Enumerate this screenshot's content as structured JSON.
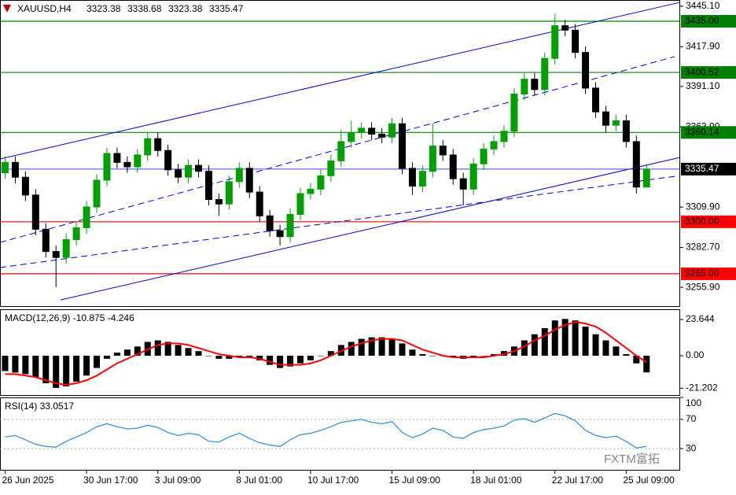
{
  "chart_data": [
    {
      "type": "candlestick",
      "symbol": "XAUUSD,H4",
      "categories": [
        "26 Jun 2025",
        null,
        null,
        null,
        null,
        null,
        null,
        null,
        "30 Jun 17:00",
        null,
        null,
        null,
        null,
        null,
        null,
        "3 Jul 09:00",
        null,
        null,
        null,
        null,
        null,
        null,
        null,
        "8 Jul 01:00",
        null,
        null,
        null,
        null,
        null,
        null,
        "10 Jul 17:00",
        null,
        null,
        null,
        null,
        null,
        null,
        null,
        "15 Jul 09:00",
        null,
        null,
        null,
        null,
        null,
        null,
        null,
        "18 Jul 01:00",
        null,
        null,
        null,
        null,
        null,
        null,
        null,
        "22 Jul 17:00",
        null,
        null,
        null,
        null,
        null,
        null,
        "25 Jul 09:00",
        null,
        null
      ],
      "open": [
        3333,
        3340,
        3330,
        3318,
        3295,
        3280,
        3276,
        3288,
        3296,
        3310,
        3328,
        3346,
        3340,
        3337,
        3345,
        3356,
        3348,
        3335,
        3330,
        3338,
        3334,
        3315,
        3312,
        3327,
        3336,
        3320,
        3304,
        3294,
        3290,
        3305,
        3319,
        3322,
        3331,
        3341,
        3354,
        3360,
        3363,
        3359,
        3357,
        3366,
        3336,
        3324,
        3334,
        3351,
        3345,
        3329,
        3322,
        3339,
        3349,
        3354,
        3361,
        3386,
        3396,
        3389,
        3410,
        3432,
        3429,
        3414,
        3390,
        3374,
        3365,
        3368,
        3354,
        3323.38
      ],
      "high": [
        3344,
        3344,
        3334,
        3322,
        3299,
        3284,
        3292,
        3300,
        3314,
        3332,
        3350,
        3350,
        3344,
        3349,
        3360,
        3360,
        3352,
        3339,
        3342,
        3342,
        3338,
        3319,
        3331,
        3340,
        3340,
        3324,
        3308,
        3298,
        3309,
        3323,
        3326,
        3335,
        3345,
        3362,
        3368,
        3367,
        3367,
        3363,
        3370,
        3370,
        3340,
        3338,
        3366,
        3355,
        3349,
        3333,
        3343,
        3353,
        3358,
        3365,
        3390,
        3400,
        3400,
        3414,
        3440,
        3436,
        3433,
        3418,
        3394,
        3378,
        3372,
        3372,
        3358,
        3338.68
      ],
      "low": [
        3329,
        3326,
        3314,
        3291,
        3276,
        3256,
        3272,
        3284,
        3292,
        3306,
        3324,
        3336,
        3333,
        3333,
        3341,
        3344,
        3331,
        3326,
        3326,
        3330,
        3311,
        3304,
        3308,
        3323,
        3316,
        3300,
        3290,
        3284,
        3286,
        3301,
        3315,
        3318,
        3327,
        3337,
        3350,
        3356,
        3355,
        3353,
        3353,
        3332,
        3318,
        3320,
        3330,
        3341,
        3325,
        3311,
        3318,
        3335,
        3345,
        3350,
        3357,
        3382,
        3385,
        3385,
        3406,
        3425,
        3410,
        3386,
        3370,
        3360,
        3361,
        3350,
        3319,
        3323.38
      ],
      "close": [
        3340,
        3330,
        3318,
        3295,
        3280,
        3276,
        3288,
        3296,
        3310,
        3328,
        3346,
        3340,
        3337,
        3345,
        3356,
        3348,
        3335,
        3330,
        3338,
        3334,
        3315,
        3312,
        3327,
        3336,
        3320,
        3304,
        3294,
        3290,
        3305,
        3319,
        3322,
        3331,
        3341,
        3354,
        3360,
        3363,
        3359,
        3357,
        3366,
        3336,
        3324,
        3334,
        3351,
        3345,
        3329,
        3322,
        3339,
        3349,
        3354,
        3361,
        3386,
        3396,
        3389,
        3410,
        3432,
        3429,
        3414,
        3390,
        3374,
        3365,
        3368,
        3354,
        3323.38,
        3335.47
      ],
      "up_color": "#00a000",
      "down_color": "#000000",
      "price_line_color": "#4040ff",
      "xlim": [
        -0.5,
        66.3
      ],
      "ylim": [
        3242.7,
        3449.3
      ],
      "yticks": [
        {
          "value": 3445.1,
          "label": "3445.10"
        },
        {
          "value": 3417.9,
          "label": "3417.90"
        },
        {
          "value": 3391.1,
          "label": "3391.10"
        },
        {
          "value": 3363.9,
          "label": "3363.90"
        },
        {
          "value": 3309.9,
          "label": "3309.90"
        },
        {
          "value": 3282.7,
          "label": "3282.70"
        },
        {
          "value": 3255.9,
          "label": "3255.90"
        }
      ],
      "levels": [
        {
          "value": 3435,
          "label": "3435.00",
          "color": "#008000"
        },
        {
          "value": 3400.52,
          "label": "3400.52",
          "color": "#008000"
        },
        {
          "value": 3360.14,
          "label": "3360.14",
          "color": "#008000"
        },
        {
          "value": 3300,
          "label": "3300.00",
          "color": "#ff0000"
        },
        {
          "value": 3265,
          "label": "3265.00",
          "color": "#ff0000"
        }
      ],
      "trendlines": [
        {
          "x": [
            -0.5,
            66.3
          ],
          "y": [
            3342.3,
            3447.75
          ],
          "color": "#0000cd",
          "dashed": false
        },
        {
          "x": [
            5.45,
            66.3
          ],
          "y": [
            3247.4,
            3343.35
          ],
          "color": "#0000cd",
          "dashed": false
        },
        {
          "x": [
            -0.5,
            65.76
          ],
          "y": [
            3286.1,
            3411.2
          ],
          "color": "#0000cd",
          "dashed": true
        },
        {
          "x": [
            -0.5,
            65.76
          ],
          "y": [
            3269.2,
            3330.6
          ],
          "color": "#0000cd",
          "dashed": true
        }
      ]
    },
    {
      "type": "macd",
      "title": "MACD(12,26,9) -10.875 -4.246",
      "histogram": [
        -10,
        -11,
        -12,
        -14,
        -18,
        -21,
        -20,
        -17,
        -13,
        -8,
        -2,
        2,
        4,
        6,
        9,
        10,
        9,
        7,
        5,
        3,
        0,
        -2,
        -2,
        -1,
        -1,
        -3,
        -6,
        -8,
        -7,
        -5,
        -3,
        0,
        3,
        7,
        9,
        11,
        12,
        12,
        11,
        8,
        4,
        1,
        0,
        0,
        -1,
        -2,
        -1,
        0,
        1,
        3,
        6,
        10,
        14,
        18,
        23,
        24,
        23,
        19,
        14,
        10,
        6,
        1,
        -5,
        -10.875
      ],
      "signal": [
        -12,
        -12,
        -13,
        -14,
        -16,
        -18,
        -19,
        -18,
        -16,
        -13,
        -9,
        -5,
        -2,
        1,
        4,
        7,
        8,
        8,
        7,
        5,
        3,
        1,
        0,
        -1,
        -1,
        -2,
        -4,
        -6,
        -6,
        -6,
        -5,
        -3,
        0,
        3,
        6,
        8,
        10,
        11,
        11,
        10,
        7,
        4,
        2,
        0,
        -1,
        -1,
        -1,
        -1,
        0,
        1,
        3,
        6,
        10,
        13,
        17,
        20,
        22,
        21,
        19,
        15,
        10,
        5,
        0,
        -4.246
      ],
      "color": "#000000",
      "signal_color": "#ff0000",
      "ylim": [
        -26.2,
        30.3
      ],
      "yticks": [
        23.644,
        {
          "value": 0,
          "label": "0.00"
        },
        -21.202
      ]
    },
    {
      "type": "line",
      "title": "RSI(14) 33.0517",
      "values": [
        46,
        48,
        42,
        36,
        33,
        32,
        40,
        46,
        52,
        60,
        64,
        60,
        57,
        58,
        62,
        59,
        52,
        48,
        51,
        49,
        40,
        39,
        46,
        51,
        44,
        38,
        35,
        33,
        42,
        49,
        51,
        55,
        60,
        66,
        68,
        70,
        66,
        64,
        67,
        52,
        45,
        50,
        58,
        55,
        46,
        44,
        52,
        56,
        58,
        61,
        69,
        71,
        66,
        72,
        78,
        75,
        68,
        55,
        48,
        45,
        47,
        40,
        31,
        33.0517
      ],
      "color": "#3d8fdc",
      "ylim": [
        0,
        100
      ],
      "yticks": [
        100,
        70,
        30
      ]
    }
  ],
  "watermark": "FXTM富拓"
}
